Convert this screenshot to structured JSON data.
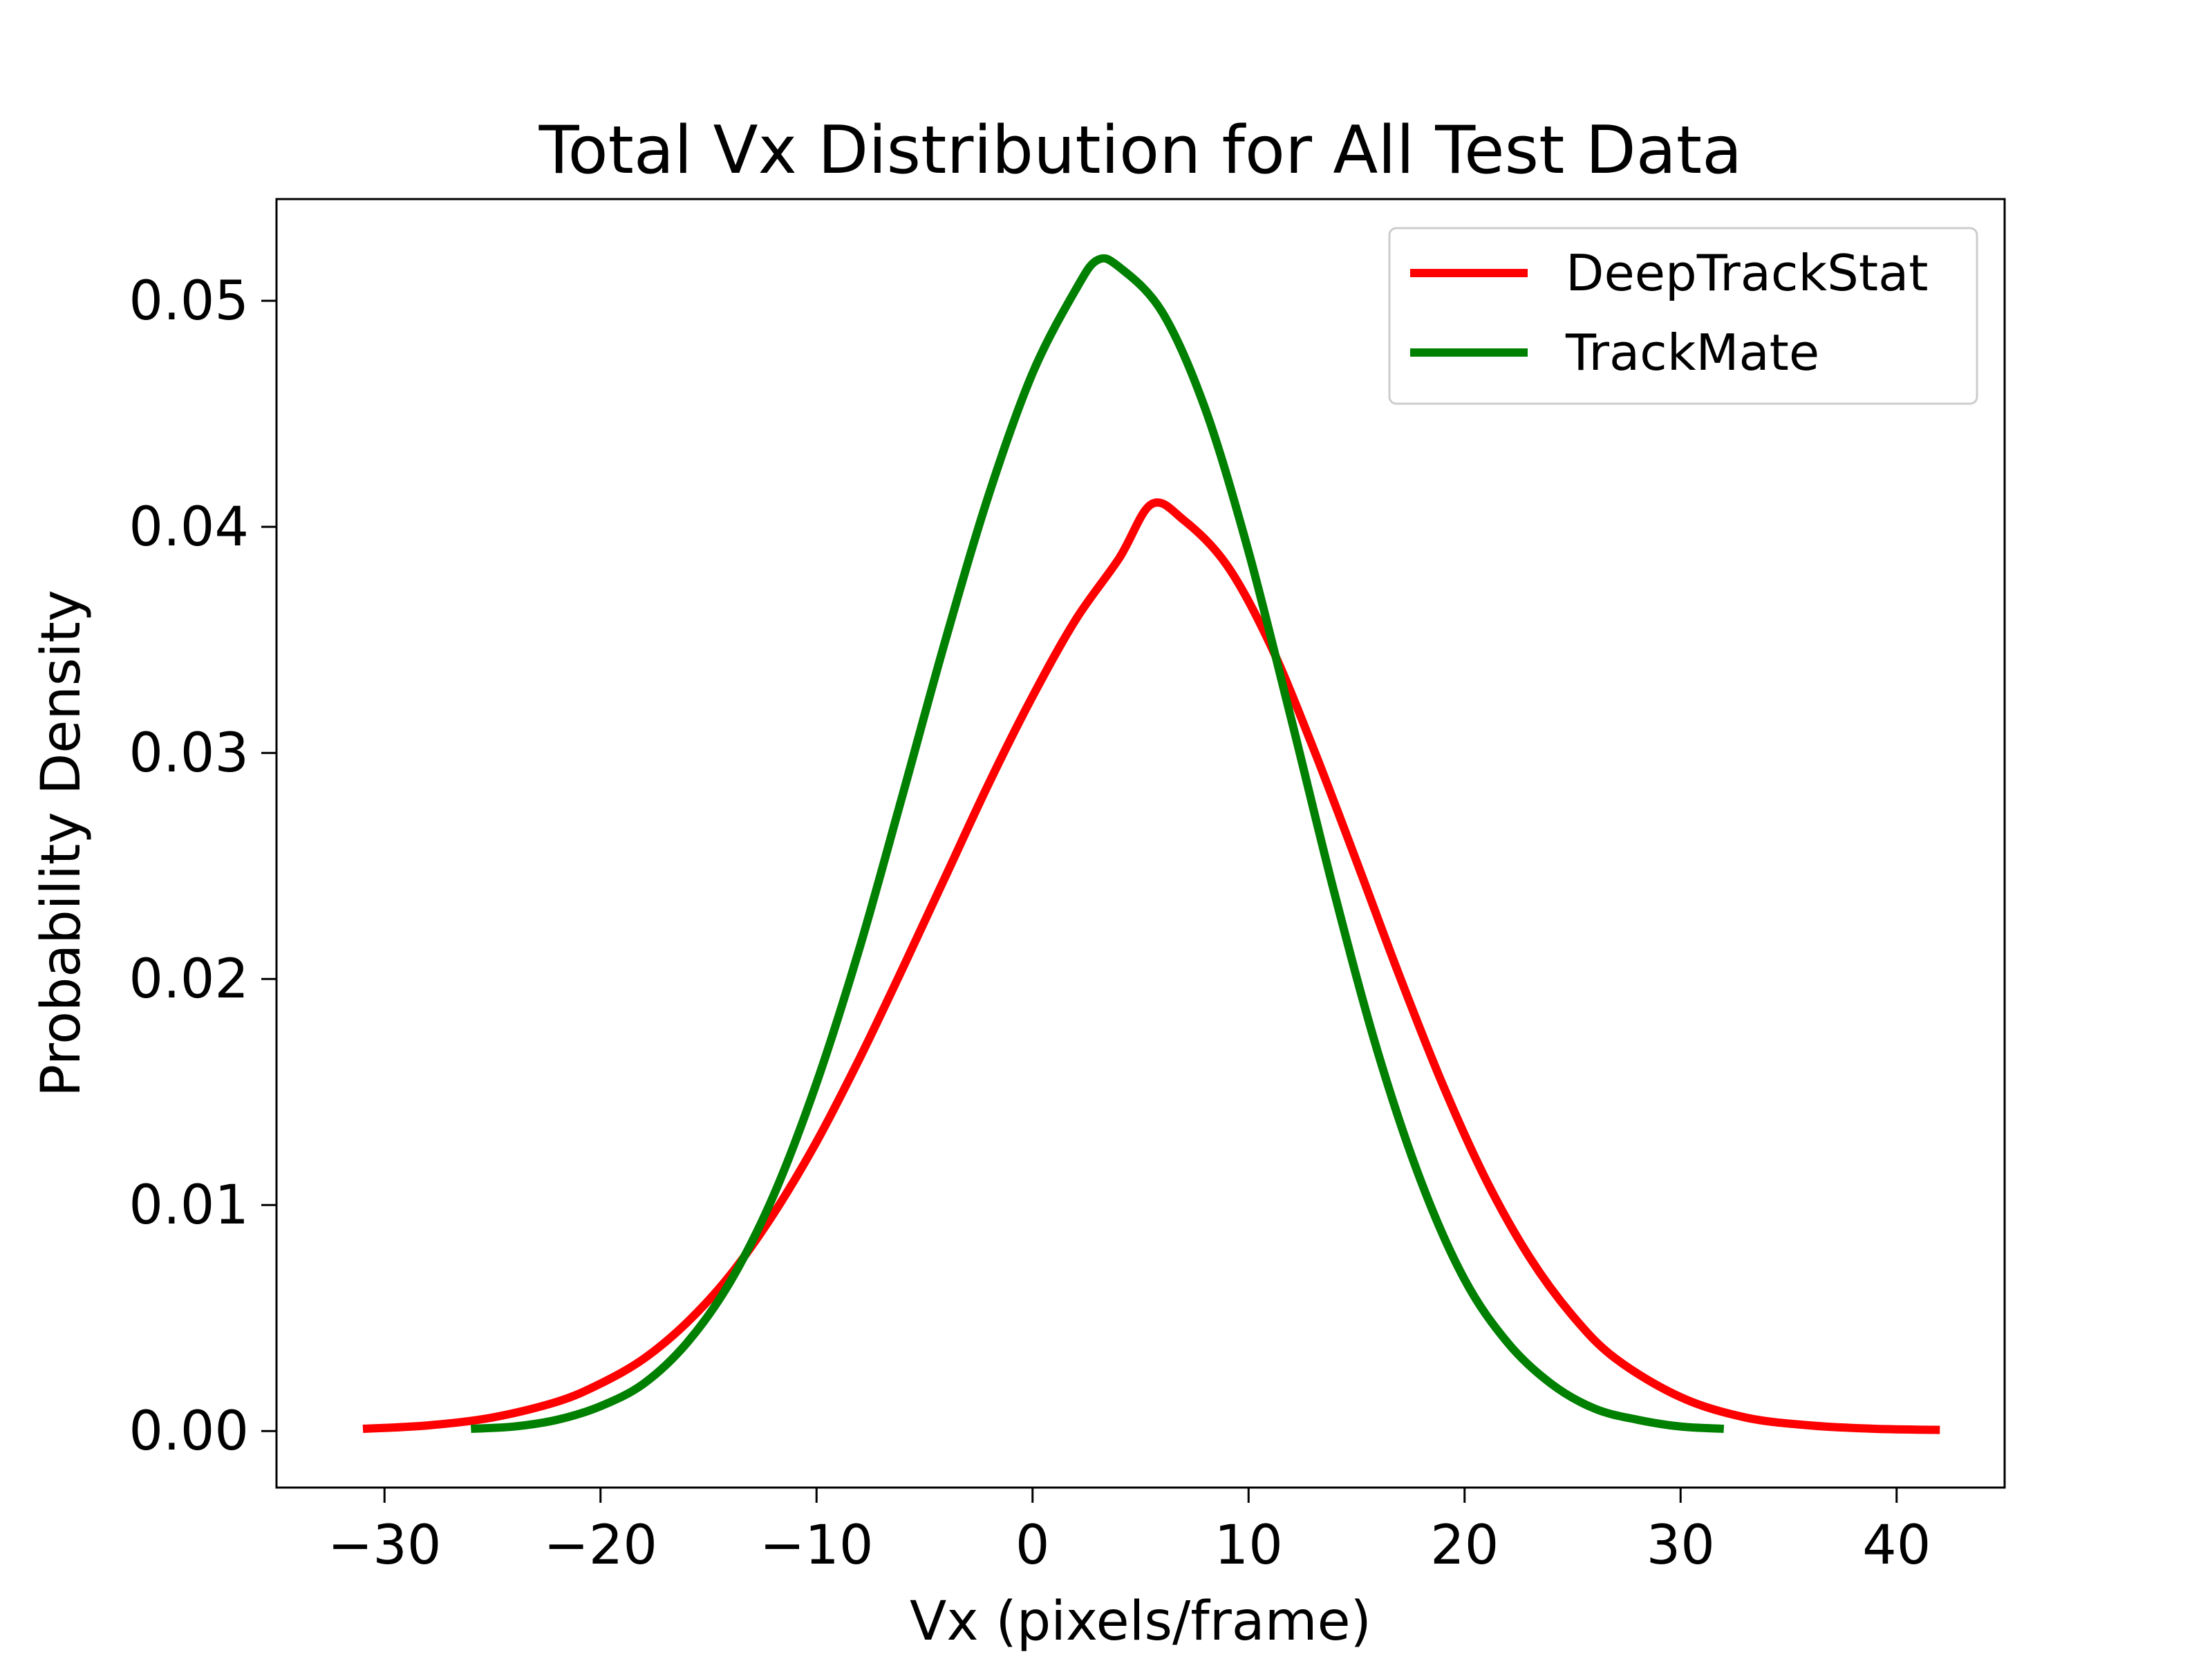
{
  "chart_data": {
    "type": "line",
    "title": "Total Vx Distribution for All Test Data",
    "xlabel": "Vx (pixels/frame)",
    "ylabel": "Probability Density",
    "xlim": [
      -35,
      45
    ],
    "ylim": [
      -0.0025,
      0.0545
    ],
    "xticks": [
      -30,
      -20,
      -10,
      0,
      10,
      20,
      30,
      40
    ],
    "xtick_labels": [
      "−30",
      "−20",
      "−10",
      "0",
      "10",
      "20",
      "30",
      "40"
    ],
    "yticks": [
      0.0,
      0.01,
      0.02,
      0.03,
      0.04,
      0.05
    ],
    "ytick_labels": [
      "0.00",
      "0.01",
      "0.02",
      "0.03",
      "0.04",
      "0.05"
    ],
    "grid": false,
    "legend_position": "top-right",
    "series": [
      {
        "name": "DeepTrackStat",
        "color": "#ff0000",
        "x": [
          -31,
          -28,
          -25,
          -22,
          -20,
          -18,
          -16,
          -14,
          -12,
          -10,
          -8,
          -6,
          -4,
          -2,
          0,
          2,
          4,
          5.5,
          7,
          9,
          11,
          13,
          15,
          17,
          19,
          21,
          23,
          25,
          27,
          30,
          33,
          36,
          39,
          42
        ],
        "y": [
          0.0001,
          0.00025,
          0.0006,
          0.0013,
          0.0021,
          0.0032,
          0.0048,
          0.0069,
          0.0096,
          0.0128,
          0.0165,
          0.0205,
          0.0246,
          0.0287,
          0.0325,
          0.0359,
          0.0386,
          0.041,
          0.0403,
          0.0383,
          0.0348,
          0.0302,
          0.0252,
          0.0201,
          0.0153,
          0.0111,
          0.0077,
          0.0051,
          0.0032,
          0.0015,
          0.0006,
          0.00025,
          0.0001,
          5e-05
        ]
      },
      {
        "name": "TrackMate",
        "color": "#008000",
        "x": [
          -26,
          -24,
          -22,
          -20,
          -18,
          -16,
          -14,
          -12,
          -10,
          -8,
          -6,
          -4,
          -2,
          0,
          2,
          3,
          4,
          6,
          8,
          10,
          12,
          14,
          16,
          18,
          20,
          22,
          24,
          26,
          28,
          30,
          32
        ],
        "y": [
          0.0001,
          0.0002,
          0.0005,
          0.0011,
          0.0021,
          0.0039,
          0.0066,
          0.0104,
          0.0154,
          0.0214,
          0.0282,
          0.0351,
          0.0415,
          0.0468,
          0.0505,
          0.0518,
          0.0515,
          0.0495,
          0.0452,
          0.0389,
          0.0314,
          0.0237,
          0.0167,
          0.011,
          0.0067,
          0.0039,
          0.0021,
          0.001,
          0.0005,
          0.0002,
          0.0001
        ]
      }
    ]
  }
}
